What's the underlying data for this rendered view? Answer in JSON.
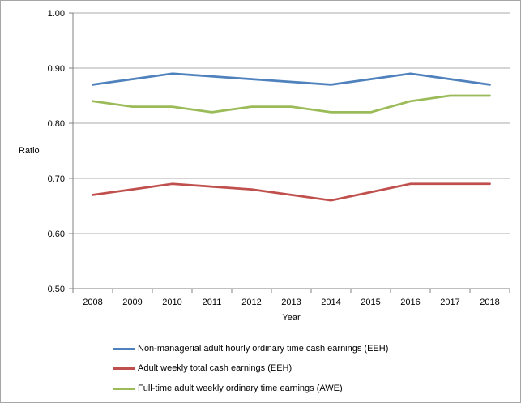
{
  "chart_data": {
    "type": "line",
    "title": "",
    "xlabel": "Year",
    "ylabel": "Ratio",
    "categories": [
      "2008",
      "2009",
      "2010",
      "2011",
      "2012",
      "2013",
      "2014",
      "2015",
      "2016",
      "2017",
      "2018"
    ],
    "series": [
      {
        "name": "Non-managerial adult hourly ordinary time cash earnings (EEH)",
        "color": "#4F81BD",
        "values": [
          0.87,
          0.88,
          0.89,
          0.885,
          0.88,
          0.875,
          0.87,
          0.88,
          0.89,
          0.88,
          0.87
        ]
      },
      {
        "name": "Adult weekly total cash earnings (EEH)",
        "color": "#C0504D",
        "values": [
          0.67,
          0.68,
          0.69,
          0.685,
          0.68,
          0.67,
          0.66,
          0.675,
          0.69,
          0.69,
          0.69
        ]
      },
      {
        "name": "Full-time adult weekly ordinary time earnings (AWE)",
        "color": "#9BBB59",
        "values": [
          0.84,
          0.83,
          0.83,
          0.82,
          0.83,
          0.83,
          0.82,
          0.82,
          0.84,
          0.85,
          0.85
        ]
      }
    ],
    "ylim": [
      0.5,
      1.0
    ],
    "ytick_labels": [
      "0.50",
      "0.60",
      "0.70",
      "0.80",
      "0.90",
      "1.00"
    ],
    "grid": "horizontal",
    "legend_position": "bottom-left",
    "colors": {
      "axis": "#808080",
      "gridline": "#ABABAB",
      "text": "#000000",
      "frame_border": "#A6A6A6"
    }
  }
}
